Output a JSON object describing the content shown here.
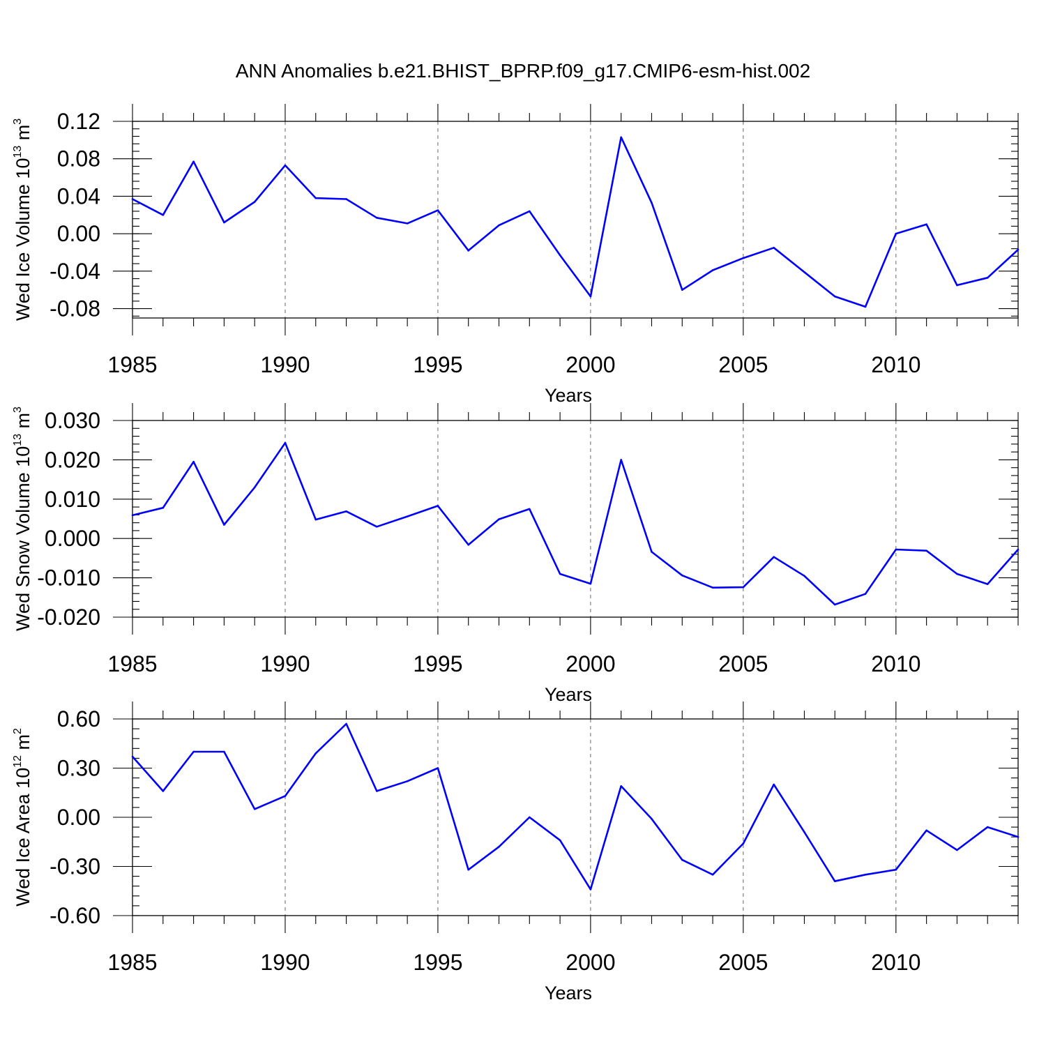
{
  "figure": {
    "title": "ANN Anomalies b.e21.BHIST_BPRP.f09_g17.CMIP6-esm-hist.002"
  },
  "chart_data": [
    {
      "type": "line",
      "ylabel": {
        "text": "Wed Ice Volume 10",
        "sup": "13",
        "text2": " m",
        "sup2": "3"
      },
      "xlabel": "Years",
      "xlim": [
        1985,
        2014
      ],
      "ylim": [
        -0.09,
        0.12
      ],
      "xticks": [
        1985,
        1990,
        1995,
        2000,
        2005,
        2010
      ],
      "xtick_labels": [
        "1985",
        "1990",
        "1995",
        "2000",
        "2005",
        "2010"
      ],
      "yticks": [
        -0.08,
        -0.04,
        0.0,
        0.04,
        0.08,
        0.12
      ],
      "ytick_labels": [
        "-0.08",
        "-0.04",
        "0.00",
        "0.04",
        "0.08",
        "0.12"
      ],
      "ytick_minor_step": 0.008,
      "grid": "x-dashed",
      "line_color": "#0000ff",
      "x": [
        1985,
        1986,
        1987,
        1988,
        1989,
        1990,
        1991,
        1992,
        1993,
        1994,
        1995,
        1996,
        1997,
        1998,
        1999,
        2000,
        2001,
        2002,
        2003,
        2004,
        2005,
        2006,
        2007,
        2008,
        2009,
        2010,
        2011,
        2012,
        2013,
        2014
      ],
      "values": [
        0.037,
        0.02,
        0.077,
        0.012,
        0.034,
        0.073,
        0.038,
        0.037,
        0.017,
        0.011,
        0.025,
        -0.018,
        0.009,
        0.024,
        -0.023,
        -0.067,
        0.103,
        0.033,
        -0.06,
        -0.039,
        -0.026,
        -0.015,
        -0.041,
        -0.067,
        -0.078,
        0.0,
        0.01,
        -0.055,
        -0.047,
        -0.017
      ]
    },
    {
      "type": "line",
      "ylabel": {
        "text": "Wed Snow Volume 10",
        "sup": "13",
        "text2": " m",
        "sup2": "3"
      },
      "xlabel": "Years",
      "xlim": [
        1985,
        2014
      ],
      "ylim": [
        -0.02,
        0.03
      ],
      "xticks": [
        1985,
        1990,
        1995,
        2000,
        2005,
        2010
      ],
      "xtick_labels": [
        "1985",
        "1990",
        "1995",
        "2000",
        "2005",
        "2010"
      ],
      "yticks": [
        -0.02,
        -0.01,
        0.0,
        0.01,
        0.02,
        0.03
      ],
      "ytick_labels": [
        "-0.020",
        "-0.010",
        "0.000",
        "0.010",
        "0.020",
        "0.030"
      ],
      "ytick_minor_step": 0.002,
      "grid": "x-dashed",
      "line_color": "#0000ff",
      "x": [
        1985,
        1986,
        1987,
        1988,
        1989,
        1990,
        1991,
        1992,
        1993,
        1994,
        1995,
        1996,
        1997,
        1998,
        1999,
        2000,
        2001,
        2002,
        2003,
        2004,
        2005,
        2006,
        2007,
        2008,
        2009,
        2010,
        2011,
        2012,
        2013,
        2014
      ],
      "values": [
        0.0059,
        0.0078,
        0.0195,
        0.0035,
        0.013,
        0.0243,
        0.0048,
        0.0069,
        0.003,
        0.0056,
        0.0083,
        -0.0016,
        0.0049,
        0.0075,
        -0.009,
        -0.0115,
        0.02,
        -0.0034,
        -0.0094,
        -0.0125,
        -0.0124,
        -0.0047,
        -0.0095,
        -0.0168,
        -0.0141,
        -0.0028,
        -0.0031,
        -0.009,
        -0.0116,
        -0.0028
      ]
    },
    {
      "type": "line",
      "ylabel": {
        "text": "Wed Ice Area 10",
        "sup": "12",
        "text2": " m",
        "sup2": "2"
      },
      "xlabel": "Years",
      "xlim": [
        1985,
        2014
      ],
      "ylim": [
        -0.6,
        0.6
      ],
      "xticks": [
        1985,
        1990,
        1995,
        2000,
        2005,
        2010
      ],
      "xtick_labels": [
        "1985",
        "1990",
        "1995",
        "2000",
        "2005",
        "2010"
      ],
      "yticks": [
        -0.6,
        -0.3,
        0.0,
        0.3,
        0.6
      ],
      "ytick_labels": [
        "-0.60",
        "-0.30",
        "0.00",
        "0.30",
        "0.60"
      ],
      "ytick_minor_step": 0.06,
      "grid": "x-dashed",
      "line_color": "#0000ff",
      "x": [
        1985,
        1986,
        1987,
        1988,
        1989,
        1990,
        1991,
        1992,
        1993,
        1994,
        1995,
        1996,
        1997,
        1998,
        1999,
        2000,
        2001,
        2002,
        2003,
        2004,
        2005,
        2006,
        2007,
        2008,
        2009,
        2010,
        2011,
        2012,
        2013,
        2014
      ],
      "values": [
        0.37,
        0.16,
        0.4,
        0.4,
        0.05,
        0.13,
        0.39,
        0.57,
        0.16,
        0.22,
        0.3,
        -0.32,
        -0.18,
        0.0,
        -0.14,
        -0.44,
        0.19,
        -0.01,
        -0.26,
        -0.35,
        -0.16,
        0.2,
        -0.09,
        -0.39,
        -0.35,
        -0.32,
        -0.08,
        -0.2,
        -0.06,
        -0.12
      ]
    }
  ]
}
